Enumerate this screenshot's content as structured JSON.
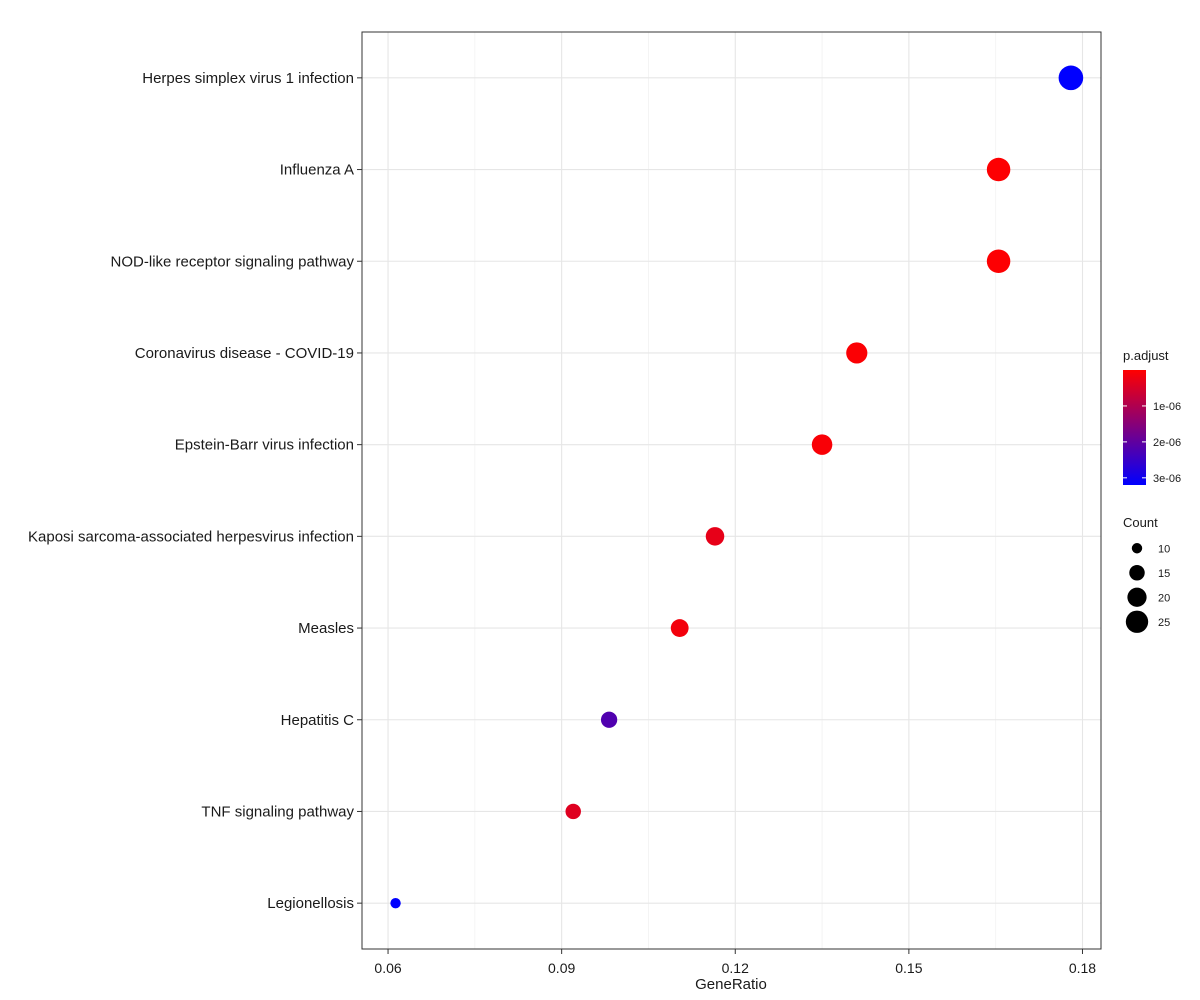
{
  "chart_data": {
    "type": "scatter",
    "xlabel": "GeneRatio",
    "ylabel": "",
    "xlim": [
      0.0555,
      0.1832
    ],
    "x_ticks": [
      0.06,
      0.09,
      0.12,
      0.15,
      0.18
    ],
    "x_tick_labels": [
      "0.06",
      "0.09",
      "0.12",
      "0.15",
      "0.18"
    ],
    "grid": true,
    "legend_position": "right",
    "categories": [
      "Herpes simplex virus 1 infection",
      "Influenza A",
      "NOD-like receptor signaling pathway",
      "Coronavirus disease - COVID-19",
      "Epstein-Barr virus infection",
      "Kaposi sarcoma-associated herpesvirus infection",
      "Measles",
      "Hepatitis C",
      "TNF signaling pathway",
      "Legionellosis"
    ],
    "points": [
      {
        "term": "Herpes simplex virus 1 infection",
        "gene_ratio": 0.178,
        "count": 29,
        "p_adjust": 3.2e-06
      },
      {
        "term": "Influenza A",
        "gene_ratio": 0.1655,
        "count": 27,
        "p_adjust": 2e-08
      },
      {
        "term": "NOD-like receptor signaling pathway",
        "gene_ratio": 0.1655,
        "count": 27,
        "p_adjust": 2e-08
      },
      {
        "term": "Coronavirus disease - COVID-19",
        "gene_ratio": 0.141,
        "count": 23,
        "p_adjust": 5e-08
      },
      {
        "term": "Epstein-Barr virus infection",
        "gene_ratio": 0.135,
        "count": 22,
        "p_adjust": 8e-08
      },
      {
        "term": "Kaposi sarcoma-associated herpesvirus infection",
        "gene_ratio": 0.1165,
        "count": 19,
        "p_adjust": 3e-07
      },
      {
        "term": "Measles",
        "gene_ratio": 0.1104,
        "count": 18,
        "p_adjust": 1.5e-07
      },
      {
        "term": "Hepatitis C",
        "gene_ratio": 0.0982,
        "count": 16,
        "p_adjust": 2.2e-06
      },
      {
        "term": "TNF signaling pathway",
        "gene_ratio": 0.092,
        "count": 15,
        "p_adjust": 4e-07
      },
      {
        "term": "Legionellosis",
        "gene_ratio": 0.0613,
        "count": 10,
        "p_adjust": 3.2e-06
      }
    ],
    "color_legend": {
      "title": "p.adjust",
      "low_color": "#ff0000",
      "high_color": "#0000ff",
      "range": [
        0,
        3.2e-06
      ],
      "ticks": [
        1e-06,
        2e-06,
        3e-06
      ],
      "tick_labels": [
        "1e-06",
        "2e-06",
        "3e-06"
      ]
    },
    "size_legend": {
      "title": "Count",
      "range": [
        10,
        29
      ],
      "values": [
        10,
        15,
        20,
        25
      ],
      "labels": [
        "10",
        "15",
        "20",
        "25"
      ]
    }
  }
}
